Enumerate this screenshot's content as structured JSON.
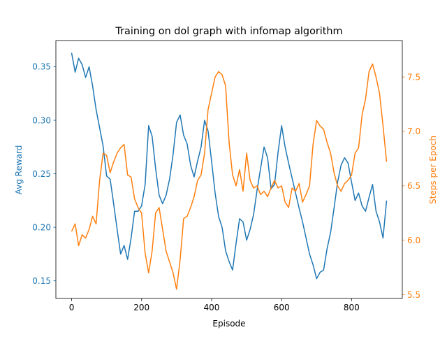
{
  "chart_data": {
    "type": "line",
    "title": "Training on dol graph with infomap algorithm",
    "xlabel": "Episode",
    "xlim": [
      -45,
      945
    ],
    "x_ticks": [
      0,
      200,
      400,
      600,
      800
    ],
    "x_tick_labels": [
      "0",
      "200",
      "400",
      "600",
      "800"
    ],
    "grid": false,
    "series": [
      {
        "axis": "left",
        "color": "#1f77b4",
        "ylabel": "Avg Reward",
        "ylim": [
          0.1335,
          0.3745
        ],
        "y_ticks": [
          0.15,
          0.2,
          0.25,
          0.3,
          0.35
        ],
        "y_tick_labels": [
          "0.15",
          "0.20",
          "0.25",
          "0.30",
          "0.35"
        ],
        "x": [
          0,
          10,
          20,
          30,
          40,
          50,
          60,
          70,
          80,
          90,
          100,
          110,
          120,
          130,
          140,
          150,
          160,
          170,
          180,
          190,
          200,
          210,
          220,
          230,
          240,
          250,
          260,
          270,
          280,
          290,
          300,
          310,
          320,
          330,
          340,
          350,
          360,
          370,
          380,
          390,
          400,
          410,
          420,
          430,
          440,
          450,
          460,
          470,
          480,
          490,
          500,
          510,
          520,
          530,
          540,
          550,
          560,
          570,
          580,
          590,
          600,
          610,
          620,
          630,
          640,
          650,
          660,
          670,
          680,
          690,
          700,
          710,
          720,
          730,
          740,
          750,
          760,
          770,
          780,
          790,
          800,
          810,
          820,
          830,
          840,
          850,
          860,
          870,
          880,
          890,
          900
        ],
        "values": [
          0.363,
          0.345,
          0.358,
          0.352,
          0.34,
          0.35,
          0.332,
          0.31,
          0.293,
          0.276,
          0.248,
          0.245,
          0.222,
          0.198,
          0.175,
          0.183,
          0.17,
          0.19,
          0.215,
          0.215,
          0.22,
          0.24,
          0.295,
          0.285,
          0.255,
          0.23,
          0.222,
          0.23,
          0.245,
          0.268,
          0.298,
          0.305,
          0.286,
          0.278,
          0.258,
          0.247,
          0.262,
          0.275,
          0.3,
          0.29,
          0.262,
          0.232,
          0.21,
          0.2,
          0.178,
          0.168,
          0.16,
          0.185,
          0.208,
          0.205,
          0.188,
          0.198,
          0.212,
          0.235,
          0.255,
          0.275,
          0.265,
          0.236,
          0.24,
          0.27,
          0.295,
          0.275,
          0.26,
          0.246,
          0.232,
          0.218,
          0.205,
          0.19,
          0.175,
          0.165,
          0.152,
          0.158,
          0.16,
          0.18,
          0.195,
          0.218,
          0.242,
          0.258,
          0.265,
          0.26,
          0.242,
          0.225,
          0.232,
          0.22,
          0.215,
          0.228,
          0.24,
          0.215,
          0.205,
          0.19,
          0.225
        ]
      },
      {
        "axis": "right",
        "color": "#ff7f0e",
        "ylabel": "Steps per Epoch",
        "ylim": [
          5.465,
          7.835
        ],
        "y_ticks": [
          5.5,
          6.0,
          6.5,
          7.0,
          7.5
        ],
        "y_tick_labels": [
          "5.5",
          "6.0",
          "6.5",
          "7.0",
          "7.5"
        ],
        "x": [
          0,
          10,
          20,
          30,
          40,
          50,
          60,
          70,
          80,
          90,
          100,
          110,
          120,
          130,
          140,
          150,
          160,
          170,
          180,
          190,
          200,
          210,
          220,
          230,
          240,
          250,
          260,
          270,
          280,
          290,
          300,
          310,
          320,
          330,
          340,
          350,
          360,
          370,
          380,
          390,
          400,
          410,
          420,
          430,
          440,
          450,
          460,
          470,
          480,
          490,
          500,
          510,
          520,
          530,
          540,
          550,
          560,
          570,
          580,
          590,
          600,
          610,
          620,
          630,
          640,
          650,
          660,
          670,
          680,
          690,
          700,
          710,
          720,
          730,
          740,
          750,
          760,
          770,
          780,
          790,
          800,
          810,
          820,
          830,
          840,
          850,
          860,
          870,
          880,
          890,
          900
        ],
        "values": [
          6.08,
          6.15,
          5.95,
          6.05,
          6.02,
          6.1,
          6.22,
          6.15,
          6.55,
          6.8,
          6.78,
          6.62,
          6.72,
          6.8,
          6.85,
          6.88,
          6.6,
          6.58,
          6.38,
          6.3,
          6.25,
          5.88,
          5.7,
          5.9,
          6.25,
          6.3,
          6.1,
          5.9,
          5.8,
          5.7,
          5.55,
          5.82,
          6.2,
          6.22,
          6.3,
          6.4,
          6.55,
          6.6,
          6.8,
          7.2,
          7.35,
          7.5,
          7.55,
          7.52,
          7.42,
          6.9,
          6.6,
          6.5,
          6.65,
          6.45,
          6.8,
          6.55,
          6.48,
          6.5,
          6.42,
          6.45,
          6.4,
          6.48,
          6.55,
          6.48,
          6.5,
          6.35,
          6.3,
          6.48,
          6.45,
          6.52,
          6.35,
          6.42,
          6.5,
          6.88,
          7.1,
          7.05,
          7.02,
          6.9,
          6.8,
          6.62,
          6.5,
          6.45,
          6.52,
          6.55,
          6.6,
          6.8,
          6.85,
          7.15,
          7.3,
          7.55,
          7.62,
          7.5,
          7.35,
          7.05,
          6.72
        ]
      }
    ]
  }
}
